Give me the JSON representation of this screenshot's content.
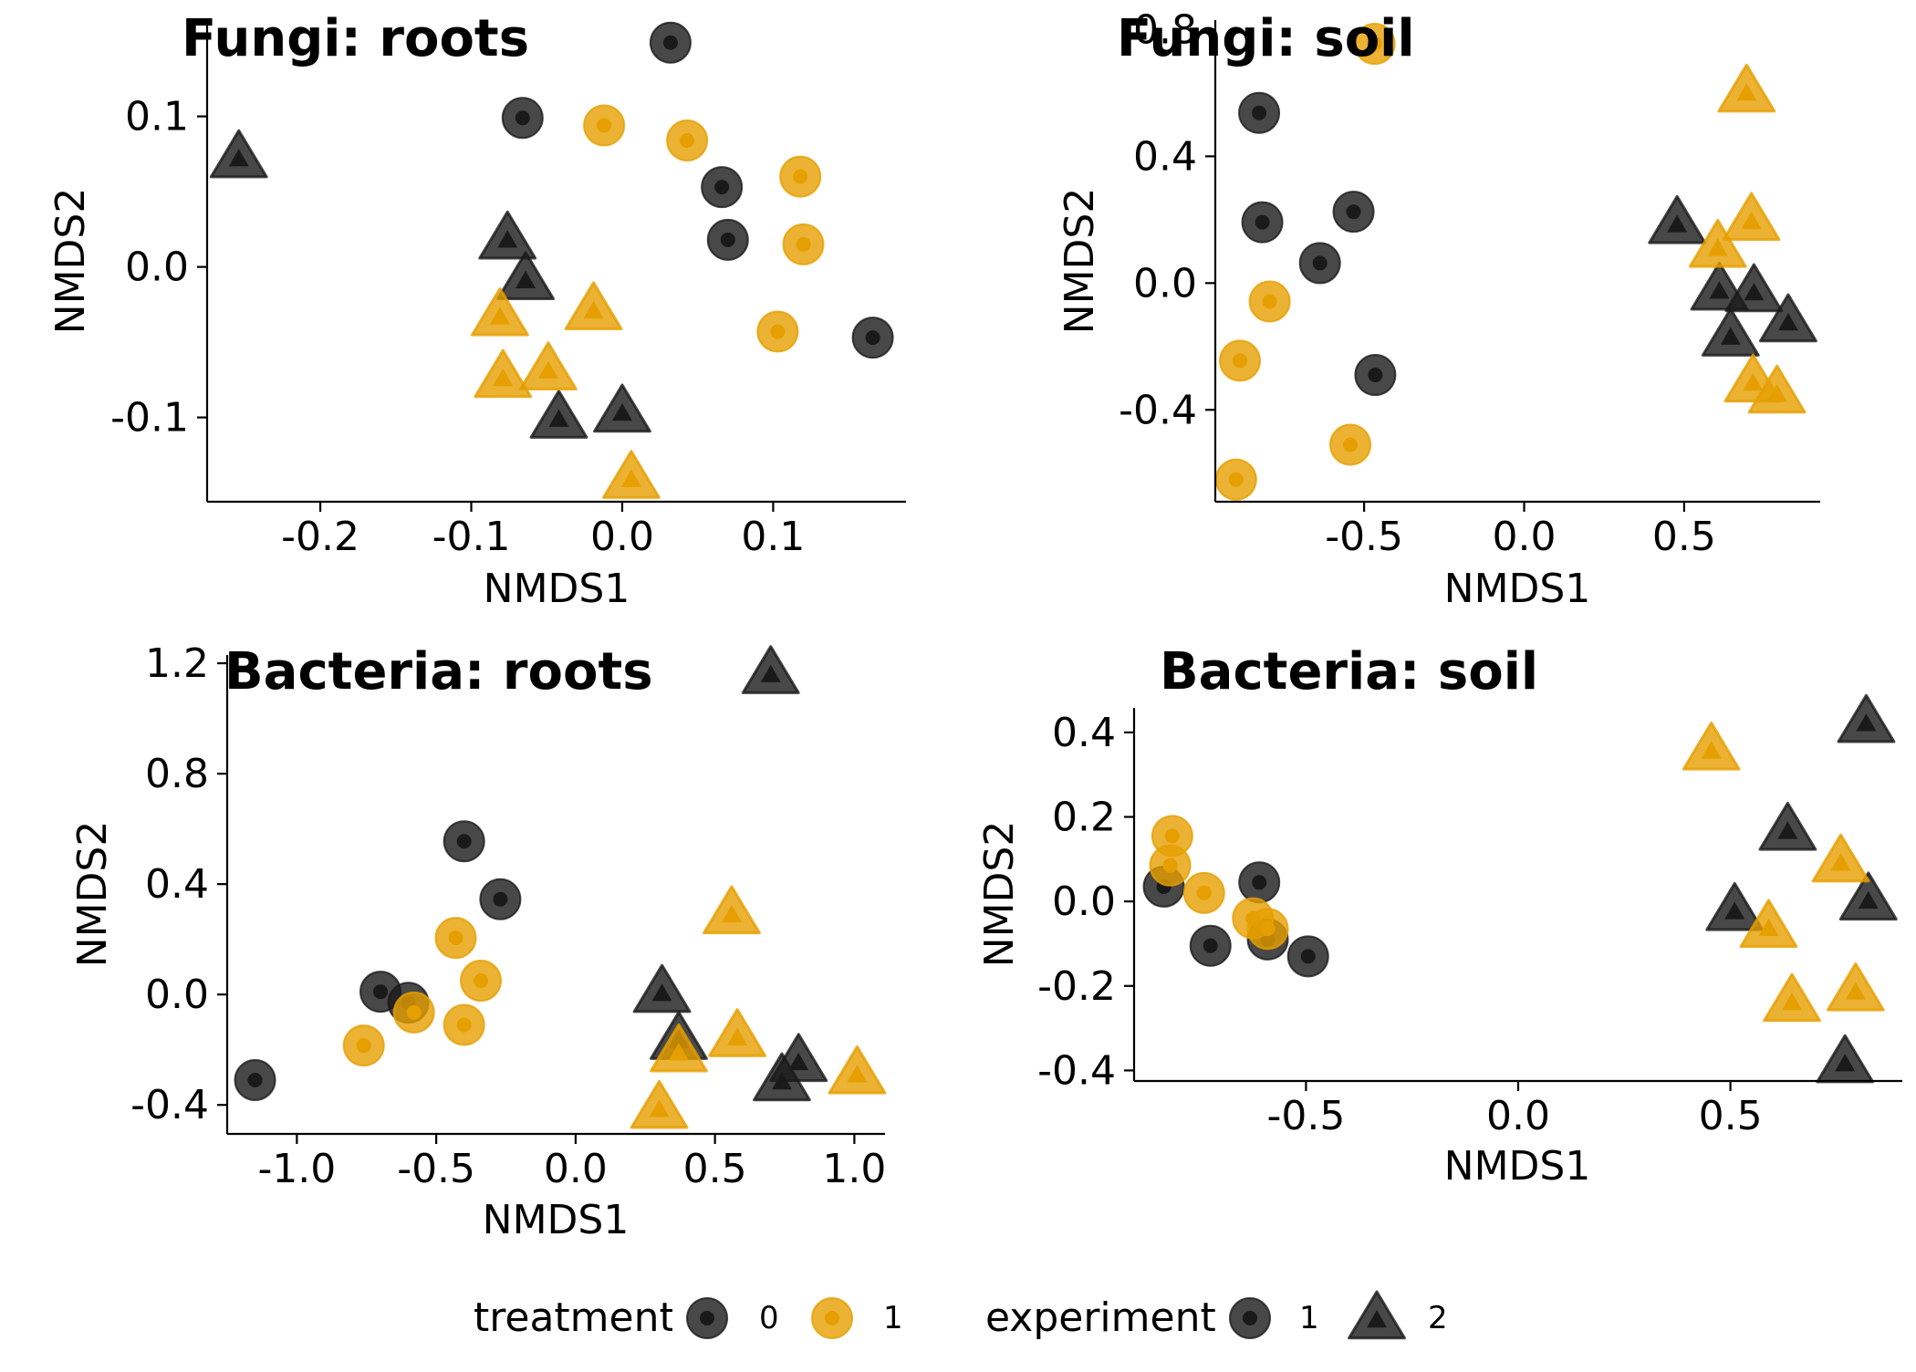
{
  "colors": {
    "treatment_0": "#1a1a1a",
    "treatment_1": "#E69F00",
    "background": "#ffffff"
  },
  "legend": {
    "treatment_title": "treatment",
    "treatment_levels": [
      {
        "label": "0",
        "color": "#1a1a1a"
      },
      {
        "label": "1",
        "color": "#E69F00"
      }
    ],
    "experiment_title": "experiment",
    "experiment_levels": [
      {
        "label": "1",
        "shape": "circle"
      },
      {
        "label": "2",
        "shape": "triangle"
      }
    ]
  },
  "chart_data": [
    {
      "type": "scatter",
      "title": "Fungi: roots",
      "xlabel": "NMDS1",
      "ylabel": "NMDS2",
      "xlim": [
        -0.275,
        0.188
      ],
      "ylim": [
        -0.156,
        0.164
      ],
      "xticks": [
        -0.2,
        -0.1,
        0.0,
        0.1
      ],
      "xtick_labels": [
        "-0.2",
        "-0.1",
        "0.0",
        "0.1"
      ],
      "yticks": [
        -0.1,
        0.0,
        0.1
      ],
      "ytick_labels": [
        "-0.1",
        "0.0",
        "0.1"
      ],
      "points": [
        {
          "x": 0.032,
          "y": 0.149,
          "treatment": "0",
          "experiment": "1"
        },
        {
          "x": -0.066,
          "y": 0.099,
          "treatment": "0",
          "experiment": "1"
        },
        {
          "x": 0.066,
          "y": 0.053,
          "treatment": "0",
          "experiment": "1"
        },
        {
          "x": 0.07,
          "y": 0.018,
          "treatment": "0",
          "experiment": "1"
        },
        {
          "x": 0.166,
          "y": -0.047,
          "treatment": "0",
          "experiment": "1"
        },
        {
          "x": -0.012,
          "y": 0.094,
          "treatment": "1",
          "experiment": "1"
        },
        {
          "x": 0.043,
          "y": 0.084,
          "treatment": "1",
          "experiment": "1"
        },
        {
          "x": 0.118,
          "y": 0.06,
          "treatment": "1",
          "experiment": "1"
        },
        {
          "x": 0.12,
          "y": 0.015,
          "treatment": "1",
          "experiment": "1"
        },
        {
          "x": 0.103,
          "y": -0.043,
          "treatment": "1",
          "experiment": "1"
        },
        {
          "x": -0.254,
          "y": 0.073,
          "treatment": "0",
          "experiment": "2"
        },
        {
          "x": -0.076,
          "y": 0.019,
          "treatment": "0",
          "experiment": "2"
        },
        {
          "x": -0.064,
          "y": -0.008,
          "treatment": "0",
          "experiment": "2"
        },
        {
          "x": -0.042,
          "y": -0.1,
          "treatment": "0",
          "experiment": "2"
        },
        {
          "x": 0.0,
          "y": -0.096,
          "treatment": "0",
          "experiment": "2"
        },
        {
          "x": -0.081,
          "y": -0.032,
          "treatment": "1",
          "experiment": "2"
        },
        {
          "x": -0.019,
          "y": -0.028,
          "treatment": "1",
          "experiment": "2"
        },
        {
          "x": -0.079,
          "y": -0.073,
          "treatment": "1",
          "experiment": "2"
        },
        {
          "x": -0.049,
          "y": -0.068,
          "treatment": "1",
          "experiment": "2"
        },
        {
          "x": 0.006,
          "y": -0.14,
          "treatment": "1",
          "experiment": "2"
        }
      ]
    },
    {
      "type": "scatter",
      "title": "Fungi: soil",
      "xlabel": "NMDS1",
      "ylabel": "NMDS2",
      "xlim": [
        -0.965,
        0.925
      ],
      "ylim": [
        -0.69,
        0.83
      ],
      "xticks": [
        -0.5,
        0.0,
        0.5
      ],
      "xtick_labels": [
        "-0.5",
        "0.0",
        "0.5"
      ],
      "yticks": [
        -0.4,
        0.0,
        0.4,
        0.8
      ],
      "ytick_labels": [
        "-0.4",
        "0.0",
        "0.4",
        "0.8"
      ],
      "points": [
        {
          "x": -0.828,
          "y": 0.537,
          "treatment": "0",
          "experiment": "1"
        },
        {
          "x": -0.818,
          "y": 0.192,
          "treatment": "0",
          "experiment": "1"
        },
        {
          "x": -0.533,
          "y": 0.225,
          "treatment": "0",
          "experiment": "1"
        },
        {
          "x": -0.638,
          "y": 0.063,
          "treatment": "0",
          "experiment": "1"
        },
        {
          "x": -0.465,
          "y": -0.29,
          "treatment": "0",
          "experiment": "1"
        },
        {
          "x": -0.467,
          "y": 0.755,
          "treatment": "1",
          "experiment": "1"
        },
        {
          "x": -0.795,
          "y": -0.058,
          "treatment": "1",
          "experiment": "1"
        },
        {
          "x": -0.888,
          "y": -0.245,
          "treatment": "1",
          "experiment": "1"
        },
        {
          "x": -0.543,
          "y": -0.51,
          "treatment": "1",
          "experiment": "1"
        },
        {
          "x": -0.9,
          "y": -0.62,
          "treatment": "1",
          "experiment": "1"
        },
        {
          "x": 0.478,
          "y": 0.19,
          "treatment": "0",
          "experiment": "2"
        },
        {
          "x": 0.61,
          "y": -0.02,
          "treatment": "0",
          "experiment": "2"
        },
        {
          "x": 0.718,
          "y": -0.025,
          "treatment": "0",
          "experiment": "2"
        },
        {
          "x": 0.825,
          "y": -0.12,
          "treatment": "0",
          "experiment": "2"
        },
        {
          "x": 0.645,
          "y": -0.165,
          "treatment": "0",
          "experiment": "2"
        },
        {
          "x": 0.695,
          "y": 0.605,
          "treatment": "1",
          "experiment": "2"
        },
        {
          "x": 0.71,
          "y": 0.2,
          "treatment": "1",
          "experiment": "2"
        },
        {
          "x": 0.605,
          "y": 0.115,
          "treatment": "1",
          "experiment": "2"
        },
        {
          "x": 0.715,
          "y": -0.31,
          "treatment": "1",
          "experiment": "2"
        },
        {
          "x": 0.79,
          "y": -0.345,
          "treatment": "1",
          "experiment": "2"
        }
      ]
    },
    {
      "type": "scatter",
      "title": "Bacteria: roots",
      "xlabel": "NMDS1",
      "ylabel": "NMDS2",
      "xlim": [
        -1.25,
        1.11
      ],
      "ylim": [
        -0.505,
        1.23
      ],
      "xticks": [
        -1.0,
        -0.5,
        0.0,
        0.5,
        1.0
      ],
      "xtick_labels": [
        "-1.0",
        "-0.5",
        "0.0",
        "0.5",
        "1.0"
      ],
      "yticks": [
        -0.4,
        0.0,
        0.4,
        0.8,
        1.2
      ],
      "ytick_labels": [
        "-0.4",
        "0.0",
        "0.4",
        "0.8",
        "1.2"
      ],
      "points": [
        {
          "x": -0.4,
          "y": 0.555,
          "treatment": "0",
          "experiment": "1"
        },
        {
          "x": -0.27,
          "y": 0.345,
          "treatment": "0",
          "experiment": "1"
        },
        {
          "x": -0.7,
          "y": 0.01,
          "treatment": "0",
          "experiment": "1"
        },
        {
          "x": -0.6,
          "y": -0.03,
          "treatment": "0",
          "experiment": "1"
        },
        {
          "x": -1.15,
          "y": -0.31,
          "treatment": "0",
          "experiment": "1"
        },
        {
          "x": -0.43,
          "y": 0.205,
          "treatment": "1",
          "experiment": "1"
        },
        {
          "x": -0.34,
          "y": 0.05,
          "treatment": "1",
          "experiment": "1"
        },
        {
          "x": -0.58,
          "y": -0.065,
          "treatment": "1",
          "experiment": "1"
        },
        {
          "x": -0.4,
          "y": -0.11,
          "treatment": "1",
          "experiment": "1"
        },
        {
          "x": -0.76,
          "y": -0.185,
          "treatment": "1",
          "experiment": "1"
        },
        {
          "x": 0.7,
          "y": 1.165,
          "treatment": "0",
          "experiment": "2"
        },
        {
          "x": 0.31,
          "y": 0.01,
          "treatment": "0",
          "experiment": "2"
        },
        {
          "x": 0.37,
          "y": -0.16,
          "treatment": "0",
          "experiment": "2"
        },
        {
          "x": 0.8,
          "y": -0.24,
          "treatment": "0",
          "experiment": "2"
        },
        {
          "x": 0.74,
          "y": -0.31,
          "treatment": "0",
          "experiment": "2"
        },
        {
          "x": 0.56,
          "y": 0.295,
          "treatment": "1",
          "experiment": "2"
        },
        {
          "x": 0.58,
          "y": -0.15,
          "treatment": "1",
          "experiment": "2"
        },
        {
          "x": 0.37,
          "y": -0.205,
          "treatment": "1",
          "experiment": "2"
        },
        {
          "x": 1.01,
          "y": -0.285,
          "treatment": "1",
          "experiment": "2"
        },
        {
          "x": 0.3,
          "y": -0.41,
          "treatment": "1",
          "experiment": "2"
        }
      ]
    },
    {
      "type": "scatter",
      "title": "Bacteria: soil",
      "xlabel": "NMDS1",
      "ylabel": "NMDS2",
      "xlim": [
        -0.905,
        0.905
      ],
      "ylim": [
        -0.425,
        0.458
      ],
      "xticks": [
        -0.5,
        0.0,
        0.5
      ],
      "xtick_labels": [
        "-0.5",
        "0.0",
        "0.5"
      ],
      "yticks": [
        -0.4,
        -0.2,
        0.0,
        0.2,
        0.4
      ],
      "ytick_labels": [
        "-0.4",
        "-0.2",
        "0.0",
        "0.2",
        "0.4"
      ],
      "points": [
        {
          "x": -0.835,
          "y": 0.035,
          "treatment": "0",
          "experiment": "1"
        },
        {
          "x": -0.61,
          "y": 0.045,
          "treatment": "0",
          "experiment": "1"
        },
        {
          "x": -0.725,
          "y": -0.105,
          "treatment": "0",
          "experiment": "1"
        },
        {
          "x": -0.59,
          "y": -0.09,
          "treatment": "0",
          "experiment": "1"
        },
        {
          "x": -0.495,
          "y": -0.13,
          "treatment": "0",
          "experiment": "1"
        },
        {
          "x": -0.815,
          "y": 0.155,
          "treatment": "1",
          "experiment": "1"
        },
        {
          "x": -0.82,
          "y": 0.085,
          "treatment": "1",
          "experiment": "1"
        },
        {
          "x": -0.74,
          "y": 0.02,
          "treatment": "1",
          "experiment": "1"
        },
        {
          "x": -0.625,
          "y": -0.04,
          "treatment": "1",
          "experiment": "1"
        },
        {
          "x": -0.59,
          "y": -0.065,
          "treatment": "1",
          "experiment": "1"
        },
        {
          "x": 0.82,
          "y": 0.425,
          "treatment": "0",
          "experiment": "2"
        },
        {
          "x": 0.635,
          "y": 0.17,
          "treatment": "0",
          "experiment": "2"
        },
        {
          "x": 0.51,
          "y": -0.02,
          "treatment": "0",
          "experiment": "2"
        },
        {
          "x": 0.825,
          "y": 0.005,
          "treatment": "0",
          "experiment": "2"
        },
        {
          "x": 0.77,
          "y": -0.38,
          "treatment": "0",
          "experiment": "2"
        },
        {
          "x": 0.455,
          "y": 0.36,
          "treatment": "1",
          "experiment": "2"
        },
        {
          "x": 0.76,
          "y": 0.095,
          "treatment": "1",
          "experiment": "2"
        },
        {
          "x": 0.59,
          "y": -0.06,
          "treatment": "1",
          "experiment": "2"
        },
        {
          "x": 0.645,
          "y": -0.235,
          "treatment": "1",
          "experiment": "2"
        },
        {
          "x": 0.795,
          "y": -0.21,
          "treatment": "1",
          "experiment": "2"
        }
      ]
    }
  ]
}
